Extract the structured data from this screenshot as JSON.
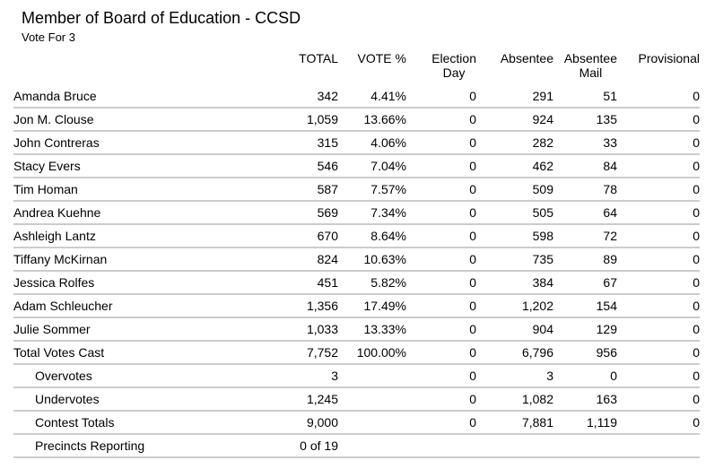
{
  "page": {
    "title": "Member of Board of Education - CCSD",
    "subtitle": "Vote For 3"
  },
  "table": {
    "headers": {
      "total": "TOTAL",
      "vote_pct": "VOTE %",
      "election_day_line1": "Election",
      "election_day_line2": "Day",
      "absentee": "Absentee",
      "absentee_mail_line1": "Absentee",
      "absentee_mail_line2": "Mail",
      "provisional": "Provisional"
    },
    "rows": [
      {
        "name": "Amanda Bruce",
        "total": "342",
        "pct": "4.41%",
        "election_day": "0",
        "absentee": "291",
        "absentee_mail": "51",
        "provisional": "0",
        "indent": false
      },
      {
        "name": "Jon M. Clouse",
        "total": "1,059",
        "pct": "13.66%",
        "election_day": "0",
        "absentee": "924",
        "absentee_mail": "135",
        "provisional": "0",
        "indent": false
      },
      {
        "name": "John Contreras",
        "total": "315",
        "pct": "4.06%",
        "election_day": "0",
        "absentee": "282",
        "absentee_mail": "33",
        "provisional": "0",
        "indent": false
      },
      {
        "name": "Stacy Evers",
        "total": "546",
        "pct": "7.04%",
        "election_day": "0",
        "absentee": "462",
        "absentee_mail": "84",
        "provisional": "0",
        "indent": false
      },
      {
        "name": "Tim Homan",
        "total": "587",
        "pct": "7.57%",
        "election_day": "0",
        "absentee": "509",
        "absentee_mail": "78",
        "provisional": "0",
        "indent": false
      },
      {
        "name": "Andrea Kuehne",
        "total": "569",
        "pct": "7.34%",
        "election_day": "0",
        "absentee": "505",
        "absentee_mail": "64",
        "provisional": "0",
        "indent": false
      },
      {
        "name": "Ashleigh Lantz",
        "total": "670",
        "pct": "8.64%",
        "election_day": "0",
        "absentee": "598",
        "absentee_mail": "72",
        "provisional": "0",
        "indent": false
      },
      {
        "name": "Tiffany McKirnan",
        "total": "824",
        "pct": "10.63%",
        "election_day": "0",
        "absentee": "735",
        "absentee_mail": "89",
        "provisional": "0",
        "indent": false
      },
      {
        "name": "Jessica Rolfes",
        "total": "451",
        "pct": "5.82%",
        "election_day": "0",
        "absentee": "384",
        "absentee_mail": "67",
        "provisional": "0",
        "indent": false
      },
      {
        "name": "Adam Schleucher",
        "total": "1,356",
        "pct": "17.49%",
        "election_day": "0",
        "absentee": "1,202",
        "absentee_mail": "154",
        "provisional": "0",
        "indent": false
      },
      {
        "name": "Julie Sommer",
        "total": "1,033",
        "pct": "13.33%",
        "election_day": "0",
        "absentee": "904",
        "absentee_mail": "129",
        "provisional": "0",
        "indent": false
      },
      {
        "name": "Total Votes Cast",
        "total": "7,752",
        "pct": "100.00%",
        "election_day": "0",
        "absentee": "6,796",
        "absentee_mail": "956",
        "provisional": "0",
        "indent": false
      },
      {
        "name": "Overvotes",
        "total": "3",
        "pct": "",
        "election_day": "0",
        "absentee": "3",
        "absentee_mail": "0",
        "provisional": "0",
        "indent": true
      },
      {
        "name": "Undervotes",
        "total": "1,245",
        "pct": "",
        "election_day": "0",
        "absentee": "1,082",
        "absentee_mail": "163",
        "provisional": "0",
        "indent": true
      },
      {
        "name": "Contest Totals",
        "total": "9,000",
        "pct": "",
        "election_day": "0",
        "absentee": "7,881",
        "absentee_mail": "1,119",
        "provisional": "0",
        "indent": true
      },
      {
        "name": "Precincts Reporting",
        "total": "0 of 19",
        "pct": "",
        "election_day": "",
        "absentee": "",
        "absentee_mail": "",
        "provisional": "",
        "indent": true
      }
    ]
  }
}
